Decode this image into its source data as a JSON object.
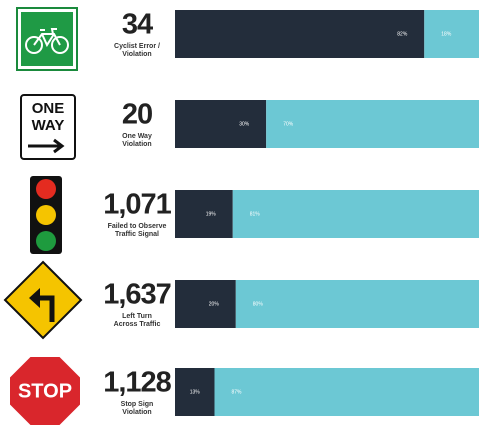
{
  "chart_data": {
    "type": "bar",
    "orientation": "horizontal",
    "stacked": true,
    "categories": [
      [
        "Cyclist Error /",
        "Violation"
      ],
      [
        "One Way",
        "Violation"
      ],
      [
        "Failed to Observe",
        "Traffic Signal"
      ],
      [
        "Left Turn",
        "Across Traffic"
      ],
      [
        "Stop Sign",
        "Violation"
      ]
    ],
    "totals": [
      {
        "value": 34,
        "label": "34"
      },
      {
        "value": 20,
        "label": "20"
      },
      {
        "value": 1071,
        "label": "1,071"
      },
      {
        "value": 1637,
        "label": "1,637"
      },
      {
        "value": 1128,
        "label": "1,128"
      }
    ],
    "series": [
      {
        "color": "#232d3b",
        "values": [
          82,
          30,
          19,
          20,
          13
        ],
        "value_labels": [
          "82%",
          "30%",
          "19%",
          "20%",
          "13%"
        ]
      },
      {
        "color": "#6cc8d4",
        "values": [
          18,
          70,
          81,
          80,
          87
        ],
        "value_labels": [
          "18%",
          "70%",
          "81%",
          "80%",
          "87%"
        ]
      }
    ],
    "xlim": [
      0,
      100
    ]
  }
}
